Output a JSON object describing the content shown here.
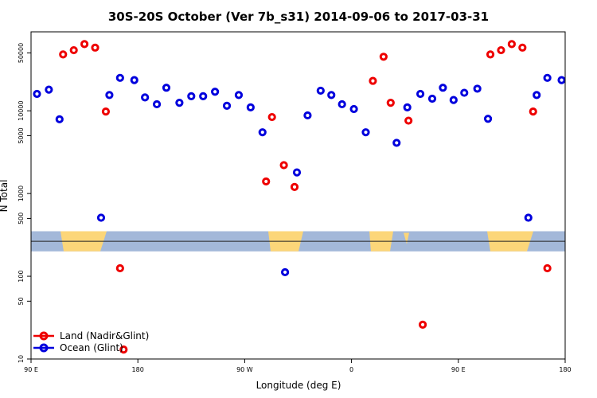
{
  "chart_data": {
    "type": "scatter",
    "title": "30S-20S October (Ver 7b_s31)   2014-09-06 to 2017-03-31",
    "xlabel": "Longitude (deg E)",
    "ylabel": "N Total",
    "y_scale": "log",
    "xlim": [
      90,
      540
    ],
    "ylim": [
      10,
      90000
    ],
    "x_ticks": [
      {
        "value": 90,
        "label": "90 E"
      },
      {
        "value": 180,
        "label": "180"
      },
      {
        "value": 270,
        "label": "90 W"
      },
      {
        "value": 360,
        "label": "0"
      },
      {
        "value": 450,
        "label": "90 E"
      },
      {
        "value": 540,
        "label": "180"
      }
    ],
    "y_ticks": [
      {
        "value": 10,
        "label": "10"
      },
      {
        "value": 50,
        "label": "50"
      },
      {
        "value": 100,
        "label": "100"
      },
      {
        "value": 500,
        "label": "500"
      },
      {
        "value": 1000,
        "label": "1000"
      },
      {
        "value": 5000,
        "label": "5000"
      },
      {
        "value": 10000,
        "label": "10000"
      },
      {
        "value": 50000,
        "label": "50000"
      }
    ],
    "legend_position": "bottom-left",
    "map_strip": {
      "y_top": 350,
      "y_bottom": 200,
      "equator_value": 265,
      "ocean_color": "#a3b8d9",
      "land_color": "#fcd679"
    },
    "series": [
      {
        "name": "Land (Nadir&Glint)",
        "color": "#ee0000",
        "points": [
          {
            "x": 117,
            "y": 48000
          },
          {
            "x": 126,
            "y": 54000
          },
          {
            "x": 135,
            "y": 64000
          },
          {
            "x": 144,
            "y": 58000
          },
          {
            "x": 153,
            "y": 9800
          },
          {
            "x": 165,
            "y": 125
          },
          {
            "x": 168,
            "y": 13
          },
          {
            "x": 288,
            "y": 1400
          },
          {
            "x": 293,
            "y": 8400
          },
          {
            "x": 303,
            "y": 2200
          },
          {
            "x": 312,
            "y": 1200
          },
          {
            "x": 378,
            "y": 23000
          },
          {
            "x": 387,
            "y": 45000
          },
          {
            "x": 393,
            "y": 12500
          },
          {
            "x": 408,
            "y": 7600
          },
          {
            "x": 420,
            "y": 26
          },
          {
            "x": 477,
            "y": 48000
          },
          {
            "x": 486,
            "y": 54000
          },
          {
            "x": 495,
            "y": 64000
          },
          {
            "x": 504,
            "y": 58000
          },
          {
            "x": 513,
            "y": 9800
          },
          {
            "x": 525,
            "y": 125
          }
        ]
      },
      {
        "name": "Ocean (Glint)",
        "color": "#0000dd",
        "points": [
          {
            "x": 95,
            "y": 16000
          },
          {
            "x": 105,
            "y": 18000
          },
          {
            "x": 114,
            "y": 7900
          },
          {
            "x": 149,
            "y": 510
          },
          {
            "x": 156,
            "y": 15500
          },
          {
            "x": 165,
            "y": 25000
          },
          {
            "x": 177,
            "y": 23500
          },
          {
            "x": 186,
            "y": 14500
          },
          {
            "x": 196,
            "y": 12000
          },
          {
            "x": 204,
            "y": 19000
          },
          {
            "x": 215,
            "y": 12500
          },
          {
            "x": 225,
            "y": 15000
          },
          {
            "x": 235,
            "y": 15000
          },
          {
            "x": 245,
            "y": 17000
          },
          {
            "x": 255,
            "y": 11500
          },
          {
            "x": 265,
            "y": 15500
          },
          {
            "x": 275,
            "y": 11000
          },
          {
            "x": 285,
            "y": 5500
          },
          {
            "x": 304,
            "y": 112
          },
          {
            "x": 314,
            "y": 1800
          },
          {
            "x": 323,
            "y": 8800
          },
          {
            "x": 334,
            "y": 17500
          },
          {
            "x": 343,
            "y": 15500
          },
          {
            "x": 352,
            "y": 12000
          },
          {
            "x": 362,
            "y": 10500
          },
          {
            "x": 372,
            "y": 5500
          },
          {
            "x": 398,
            "y": 4100
          },
          {
            "x": 407,
            "y": 11000
          },
          {
            "x": 418,
            "y": 16000
          },
          {
            "x": 428,
            "y": 14000
          },
          {
            "x": 437,
            "y": 19000
          },
          {
            "x": 446,
            "y": 13500
          },
          {
            "x": 455,
            "y": 16500
          },
          {
            "x": 466,
            "y": 18500
          },
          {
            "x": 475,
            "y": 8000
          },
          {
            "x": 509,
            "y": 510
          },
          {
            "x": 516,
            "y": 15500
          },
          {
            "x": 525,
            "y": 25000
          },
          {
            "x": 537,
            "y": 23500
          }
        ]
      }
    ]
  }
}
